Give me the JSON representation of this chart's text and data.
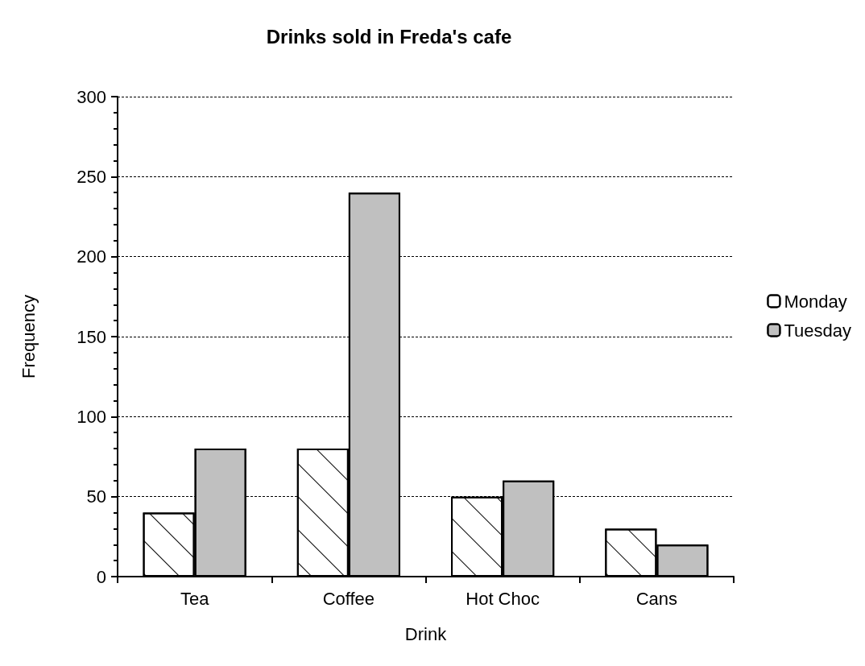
{
  "chart_data": {
    "type": "bar",
    "title": "Drinks sold in Freda's cafe",
    "xlabel": "Drink",
    "ylabel": "Frequency",
    "categories": [
      "Tea",
      "Coffee",
      "Hot Choc",
      "Cans"
    ],
    "series": [
      {
        "name": "Monday",
        "color": "#ffffff",
        "values": [
          40,
          80,
          50,
          30
        ]
      },
      {
        "name": "Tuesday",
        "color": "#c0c0c0",
        "values": [
          80,
          240,
          60,
          20
        ]
      }
    ],
    "ylim": [
      0,
      300
    ],
    "yticks": [
      0,
      50,
      100,
      150,
      200,
      250,
      300
    ],
    "grid": "y",
    "legend": "right"
  }
}
